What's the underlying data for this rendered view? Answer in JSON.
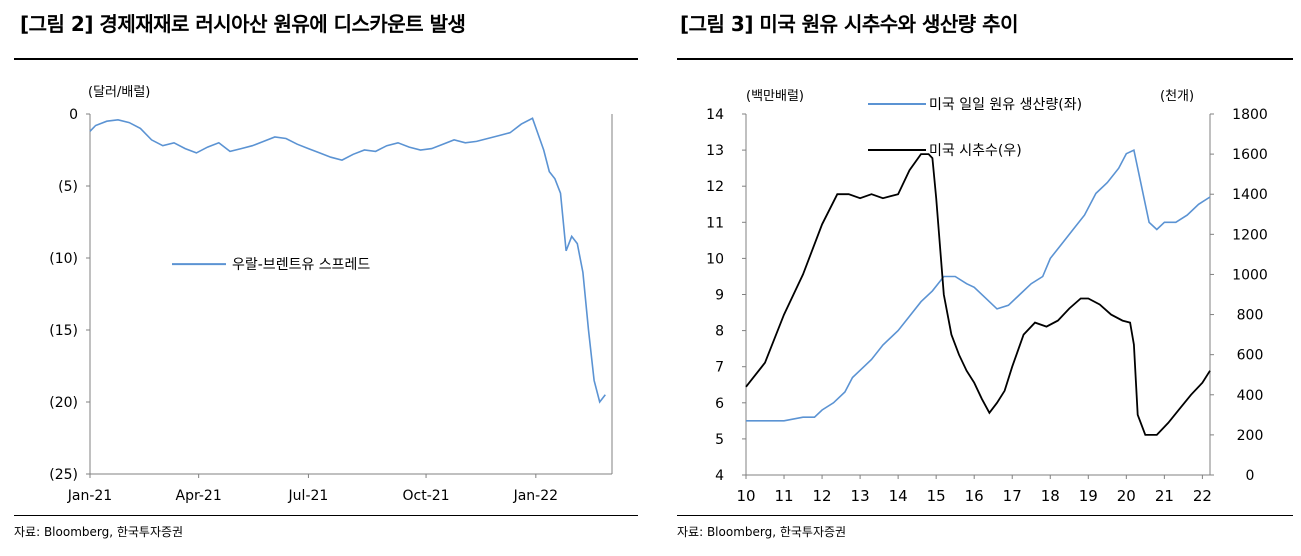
{
  "colors": {
    "blue": "#5b93d3",
    "black": "#000000",
    "axis": "#808080"
  },
  "left": {
    "title": "[그림 2] 경제재재로 러시아산 원유에 디스카운트 발생",
    "source": "자료: Bloomberg, 한국투자증권",
    "unit": "(달러/배럴)",
    "chart_data": {
      "type": "line",
      "title": "[그림 2] 경제재재로 러시아산 원유에 디스카운트 발생",
      "ylabel": "(달러/배럴)",
      "ylim": [
        -25,
        0
      ],
      "yticks": [
        0,
        -5,
        -10,
        -15,
        -20,
        -25
      ],
      "ytick_labels": [
        "0",
        "(5)",
        "(10)",
        "(15)",
        "(20)",
        "(25)"
      ],
      "xticks": [
        "Jan-21",
        "Apr-21",
        "Jul-21",
        "Oct-21",
        "Jan-22"
      ],
      "legend": "left-middle",
      "grid": false,
      "series": [
        {
          "name": "우랄-브렌트유 스프레드",
          "color": "#5b93d3",
          "x": [
            0,
            5,
            15,
            25,
            35,
            45,
            55,
            65,
            75,
            85,
            95,
            105,
            115,
            125,
            135,
            145,
            155,
            165,
            175,
            185,
            195,
            205,
            215,
            225,
            235,
            245,
            255,
            265,
            275,
            285,
            295,
            305,
            315,
            325,
            335,
            345,
            355,
            365,
            375,
            385,
            395,
            405,
            410,
            415,
            420,
            425,
            430,
            435,
            440,
            445,
            450,
            455,
            460
          ],
          "values": [
            -1.2,
            -0.8,
            -0.5,
            -0.4,
            -0.6,
            -1.0,
            -1.8,
            -2.2,
            -2.0,
            -2.4,
            -2.7,
            -2.3,
            -2.0,
            -2.6,
            -2.4,
            -2.2,
            -1.9,
            -1.6,
            -1.7,
            -2.1,
            -2.4,
            -2.7,
            -3.0,
            -3.2,
            -2.8,
            -2.5,
            -2.6,
            -2.2,
            -2.0,
            -2.3,
            -2.5,
            -2.4,
            -2.1,
            -1.8,
            -2.0,
            -1.9,
            -1.7,
            -1.5,
            -1.3,
            -0.7,
            -0.3,
            -2.5,
            -4.0,
            -4.5,
            -5.5,
            -9.5,
            -8.5,
            -9.0,
            -11.0,
            -15.0,
            -18.5,
            -20.0,
            -19.5
          ]
        }
      ]
    }
  },
  "right": {
    "title": "[그림 3] 미국 원유 시추수와 생산량 추이",
    "source": "자료: Bloomberg, 한국투자증권",
    "unit_left": "(백만배럴)",
    "unit_right": "(천개)",
    "chart_data": {
      "type": "line",
      "title": "[그림 3] 미국 원유 시추수와 생산량 추이",
      "ylabel": "(백만배럴)",
      "y2label": "(천개)",
      "ylim": [
        4,
        14
      ],
      "y2lim": [
        0,
        1800
      ],
      "xlim": [
        10,
        22.2
      ],
      "xticks": [
        10,
        11,
        12,
        13,
        14,
        15,
        16,
        17,
        18,
        19,
        20,
        21,
        22
      ],
      "yticks": [
        4,
        5,
        6,
        7,
        8,
        9,
        10,
        11,
        12,
        13,
        14
      ],
      "y2ticks": [
        0,
        200,
        400,
        600,
        800,
        1000,
        1200,
        1400,
        1600,
        1800
      ],
      "legend": "top-center",
      "grid": false,
      "series": [
        {
          "name": "미국 일일 원유 생산량(좌)",
          "axis": "left",
          "color": "#5b93d3",
          "x": [
            10.0,
            10.5,
            11.0,
            11.5,
            11.8,
            12.0,
            12.3,
            12.6,
            12.8,
            13.0,
            13.3,
            13.6,
            14.0,
            14.3,
            14.6,
            14.9,
            15.2,
            15.5,
            15.8,
            16.0,
            16.3,
            16.6,
            16.9,
            17.2,
            17.5,
            17.8,
            18.0,
            18.3,
            18.6,
            18.9,
            19.2,
            19.5,
            19.8,
            20.0,
            20.2,
            20.4,
            20.6,
            20.8,
            21.0,
            21.3,
            21.6,
            21.9,
            22.2
          ],
          "values": [
            5.5,
            5.5,
            5.5,
            5.6,
            5.6,
            5.8,
            6.0,
            6.3,
            6.7,
            6.9,
            7.2,
            7.6,
            8.0,
            8.4,
            8.8,
            9.1,
            9.5,
            9.5,
            9.3,
            9.2,
            8.9,
            8.6,
            8.7,
            9.0,
            9.3,
            9.5,
            10.0,
            10.4,
            10.8,
            11.2,
            11.8,
            12.1,
            12.5,
            12.9,
            13.0,
            12.0,
            11.0,
            10.8,
            11.0,
            11.0,
            11.2,
            11.5,
            11.7
          ]
        },
        {
          "name": "미국 시추수(우)",
          "axis": "right",
          "color": "#000000",
          "x": [
            10.0,
            10.5,
            11.0,
            11.5,
            12.0,
            12.4,
            12.7,
            13.0,
            13.3,
            13.6,
            14.0,
            14.3,
            14.6,
            14.8,
            14.9,
            15.0,
            15.2,
            15.4,
            15.6,
            15.8,
            16.0,
            16.2,
            16.4,
            16.6,
            16.8,
            17.0,
            17.3,
            17.6,
            17.9,
            18.2,
            18.5,
            18.8,
            19.0,
            19.3,
            19.6,
            19.9,
            20.1,
            20.2,
            20.3,
            20.5,
            20.8,
            21.1,
            21.4,
            21.7,
            22.0,
            22.2
          ],
          "values": [
            440,
            560,
            800,
            1000,
            1250,
            1400,
            1400,
            1380,
            1400,
            1380,
            1400,
            1520,
            1600,
            1600,
            1580,
            1380,
            900,
            700,
            600,
            520,
            460,
            380,
            310,
            360,
            420,
            540,
            700,
            760,
            740,
            770,
            830,
            880,
            880,
            850,
            800,
            770,
            760,
            650,
            300,
            200,
            200,
            260,
            330,
            400,
            460,
            520
          ]
        }
      ]
    }
  }
}
